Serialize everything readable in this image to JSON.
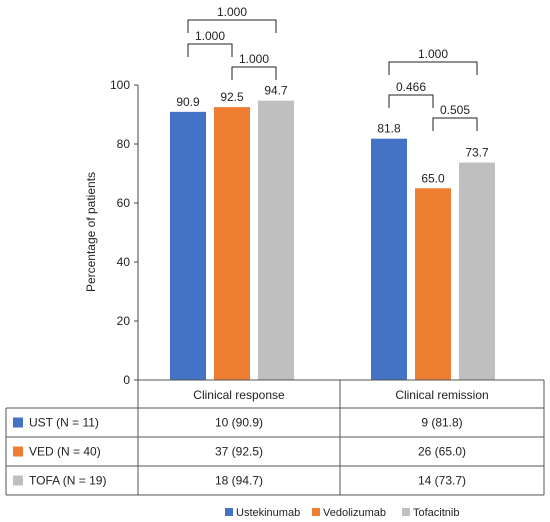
{
  "chart_data": {
    "type": "bar",
    "categories": [
      "Clinical response",
      "Clinical remission"
    ],
    "series": [
      {
        "name": "Ustekinumab",
        "values": [
          90.9,
          81.8
        ],
        "color": "#4472C4"
      },
      {
        "name": "Vedolizumab",
        "values": [
          92.5,
          65.0
        ],
        "color": "#ED7D31"
      },
      {
        "name": "Tofacitnib",
        "values": [
          94.7,
          73.7
        ],
        "color": "#BFBFBF"
      }
    ],
    "data_labels": [
      [
        "90.9",
        "92.5",
        "94.7"
      ],
      [
        "81.8",
        "65.0",
        "73.7"
      ]
    ],
    "ylabel": "Percentage of patients",
    "ylim": [
      0,
      100
    ],
    "yticks": [
      "0",
      "20",
      "40",
      "60",
      "80",
      "100"
    ],
    "grid": false,
    "legend_position": "bottom",
    "comparisons": [
      {
        "group": 0,
        "from": 0,
        "to": 2,
        "p": "1.000"
      },
      {
        "group": 0,
        "from": 0,
        "to": 1,
        "p": "1.000"
      },
      {
        "group": 0,
        "from": 1,
        "to": 2,
        "p": "1.000"
      },
      {
        "group": 1,
        "from": 0,
        "to": 2,
        "p": "1.000"
      },
      {
        "group": 1,
        "from": 0,
        "to": 1,
        "p": "0.466"
      },
      {
        "group": 1,
        "from": 1,
        "to": 2,
        "p": "0.505"
      }
    ],
    "table": {
      "rows": [
        {
          "label": "UST (N = 11)",
          "values": [
            "10 (90.9)",
            "9 (81.8)"
          ]
        },
        {
          "label": "VED (N = 40)",
          "values": [
            "37 (92.5)",
            "26 (65.0)"
          ]
        },
        {
          "label": "TOFA (N = 19)",
          "values": [
            "18 (94.7)",
            "14 (73.7)"
          ]
        }
      ]
    }
  }
}
